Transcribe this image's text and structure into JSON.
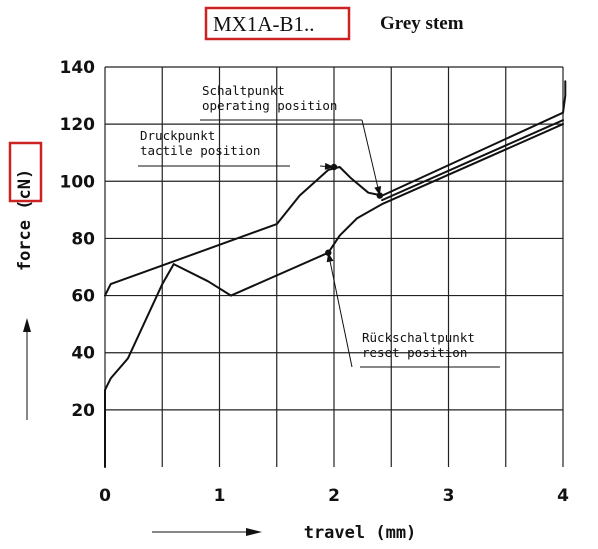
{
  "header": {
    "model": "MX1A-B1..",
    "stem": "Grey stem"
  },
  "colors": {
    "highlight_box": "#cc2222",
    "ink": "#111111"
  },
  "chart_data": {
    "type": "line",
    "title": "",
    "xlabel": "travel (mm)",
    "ylabel": "force (cN)",
    "xlim": [
      0,
      4
    ],
    "ylim": [
      0,
      140
    ],
    "xticks": [
      0,
      1,
      2,
      3,
      4
    ],
    "yticks": [
      20,
      40,
      60,
      80,
      100,
      120,
      140
    ],
    "grid": true,
    "series": [
      {
        "x": [
          0,
          0.05,
          1.5,
          1.7,
          1.95,
          2.05,
          2.15,
          2.3,
          2.42,
          4.0,
          4.02,
          4.02
        ],
        "y": [
          60,
          64,
          85,
          95,
          104,
          105,
          101,
          96,
          95,
          124,
          130,
          135
        ]
      },
      {
        "x": [
          4.0,
          2.42,
          2.2,
          2.05,
          1.95,
          1.1,
          0.9,
          0.6,
          0.5,
          0.2,
          0.05,
          0,
          0
        ],
        "y": [
          120,
          92,
          87,
          81,
          75,
          60,
          65,
          71,
          64,
          38,
          31,
          27,
          0
        ]
      }
    ],
    "annotations": [
      {
        "lines": [
          "Schaltpunkt",
          "operating position"
        ],
        "x": 2.4,
        "y": 95
      },
      {
        "lines": [
          "Druckpunkt",
          "tactile position"
        ],
        "x": 2.0,
        "y": 105
      },
      {
        "lines": [
          "Rückschaltpunkt",
          "reset position"
        ],
        "x": 1.95,
        "y": 75
      }
    ]
  }
}
